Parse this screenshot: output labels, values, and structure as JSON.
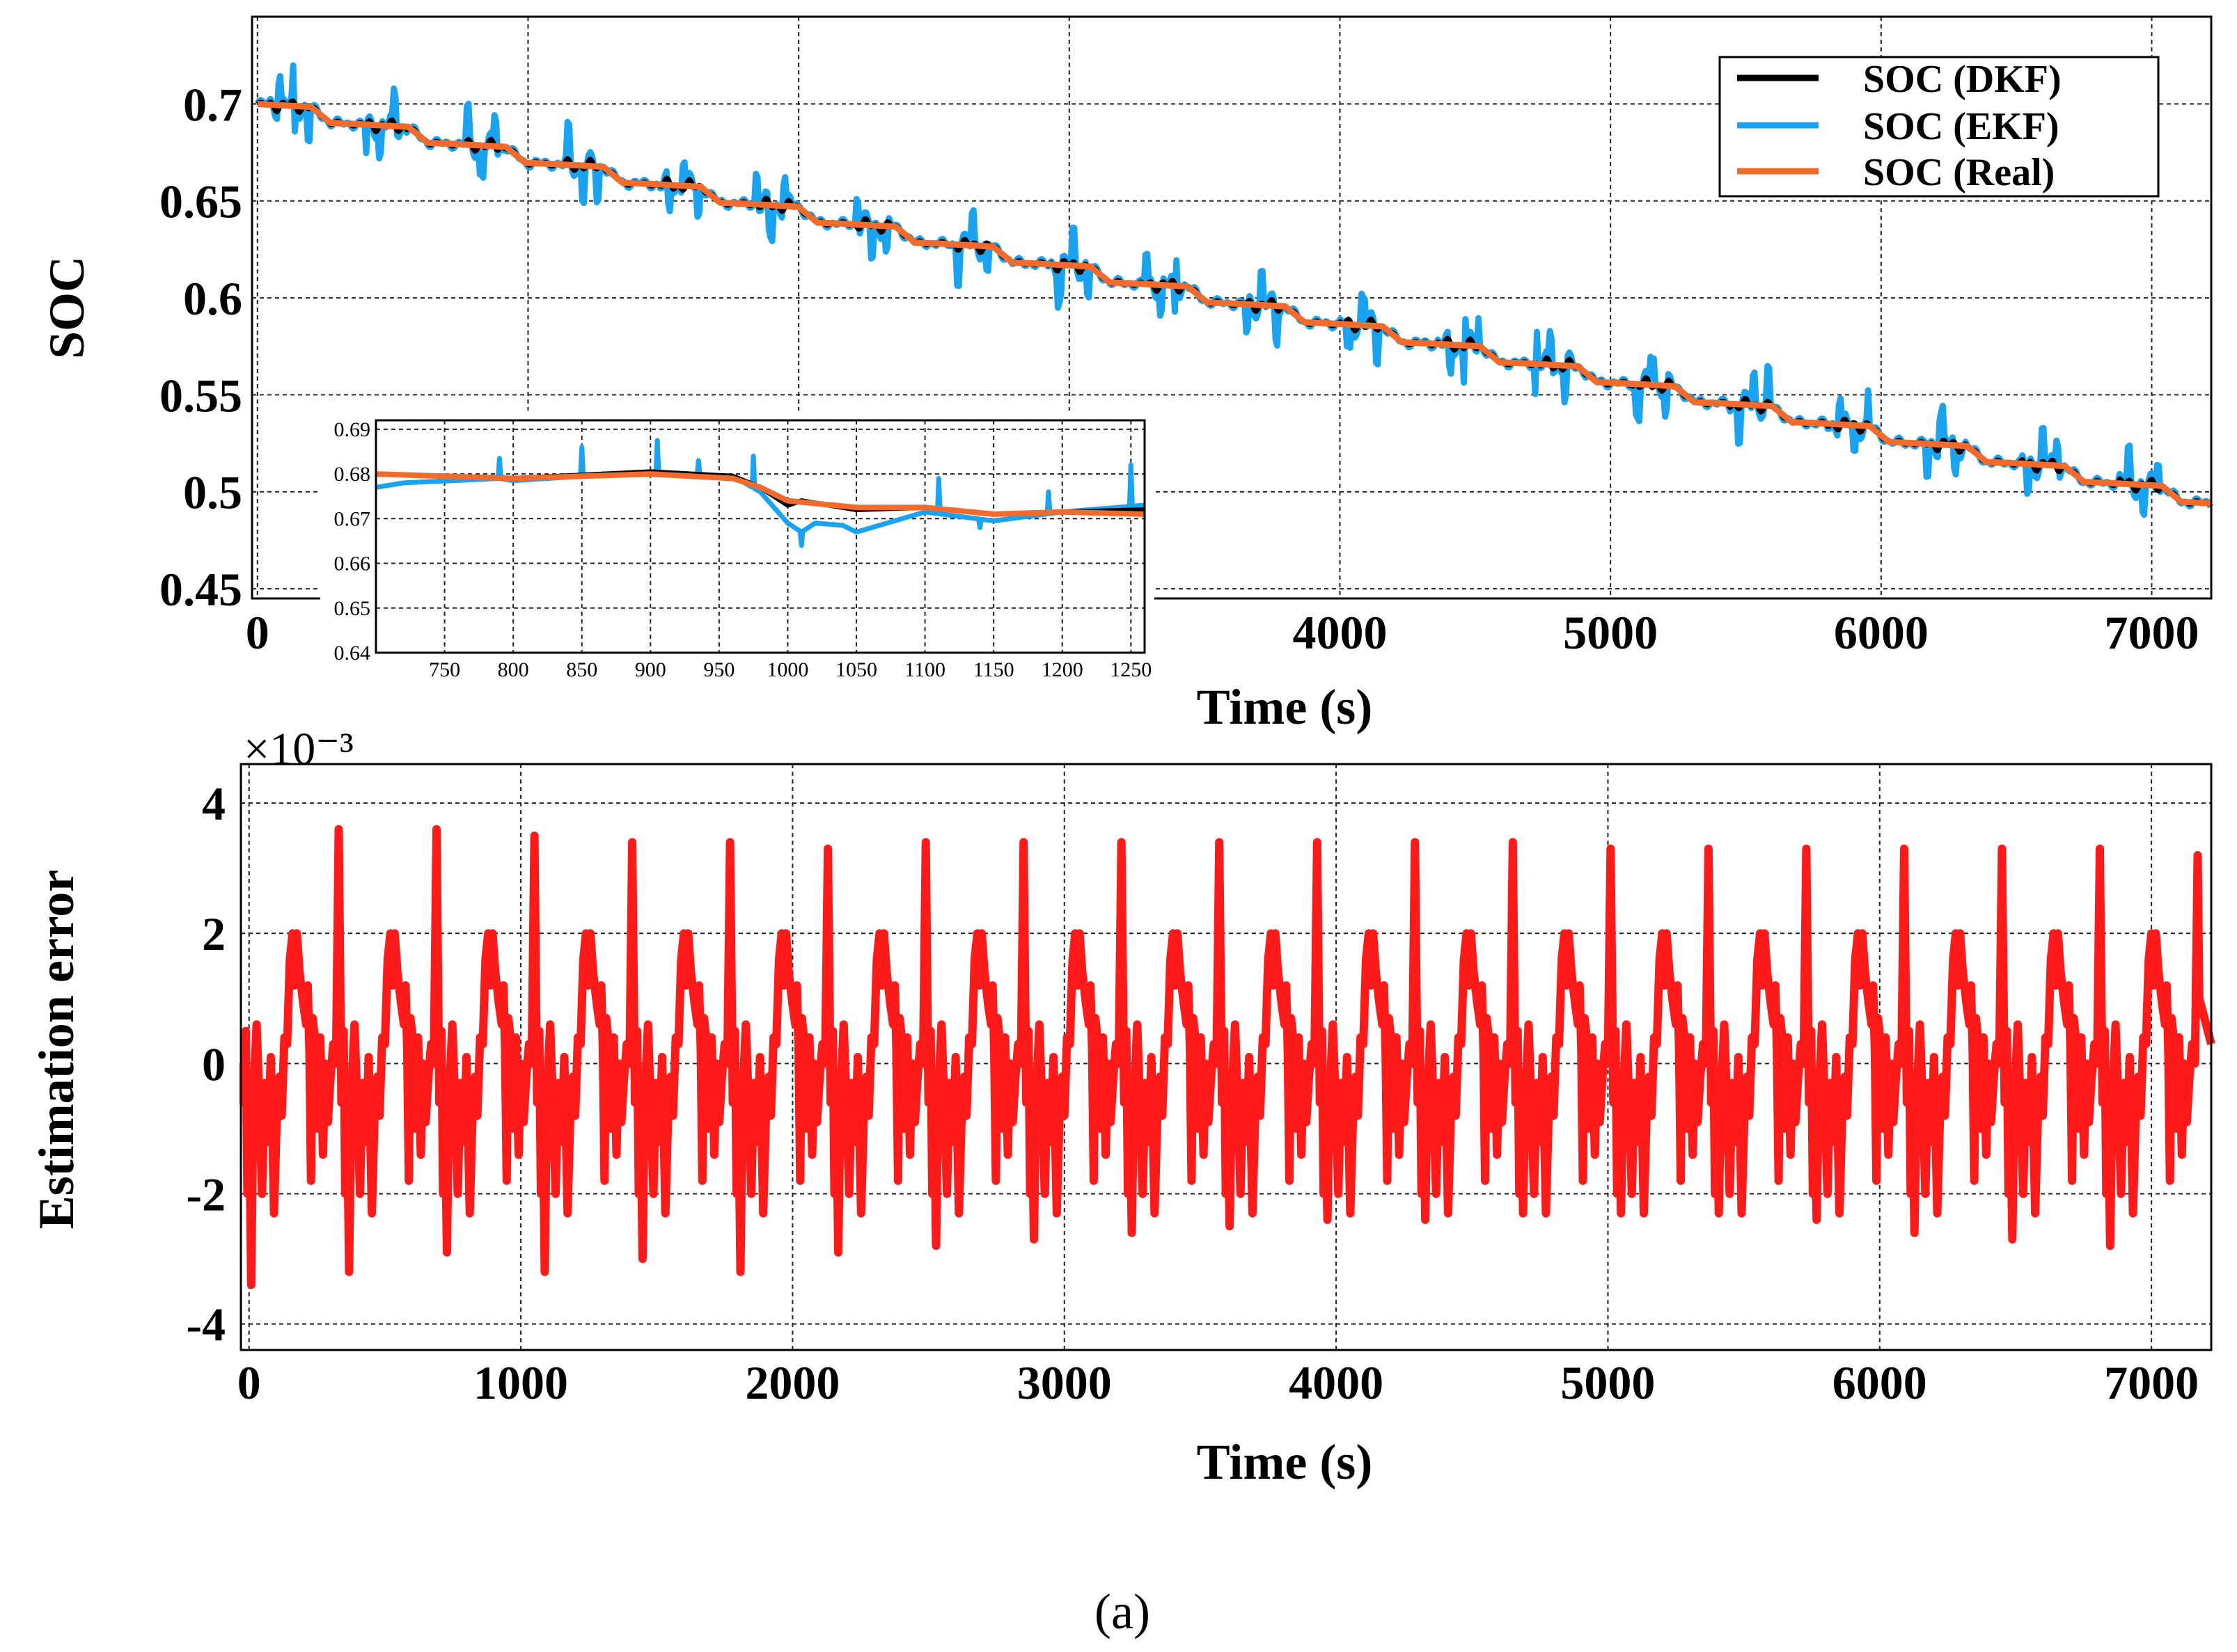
{
  "caption": "(a)",
  "chart_data": [
    {
      "type": "line",
      "title": "",
      "xlabel": "Time (s)",
      "ylabel": "SOC",
      "xlim": [
        -20,
        7220
      ],
      "ylim": [
        0.445,
        0.745
      ],
      "x_ticks": [
        0,
        1000,
        2000,
        3000,
        4000,
        5000,
        6000,
        7000
      ],
      "x_tick_labels": [
        "0",
        "1000",
        "2000",
        "3000",
        "4000",
        "5000",
        "6000",
        "7000"
      ],
      "y_ticks": [
        0.45,
        0.5,
        0.55,
        0.6,
        0.65,
        0.7
      ],
      "y_tick_labels": [
        "0.45",
        "0.5",
        "0.55",
        "0.6",
        "0.65",
        "0.7"
      ],
      "grid": true,
      "legend_position": "top-right",
      "series": [
        {
          "name": "SOC (DKF)",
          "color": "#000000"
        },
        {
          "name": "SOC (EKF)",
          "color": "#1aa3f0"
        },
        {
          "name": "SOC (Real)",
          "color": "#f26b2d"
        }
      ],
      "model": {
        "start": 0.7,
        "end": 0.484,
        "step_period_s": 360,
        "dkf_ripple": 0.006,
        "ekf_ripple": 0.012
      },
      "inset": {
        "xlim": [
          700,
          1260
        ],
        "ylim": [
          0.64,
          0.692
        ],
        "x_ticks": [
          750,
          800,
          850,
          900,
          950,
          1000,
          1050,
          1100,
          1150,
          1200,
          1250
        ],
        "x_tick_labels": [
          "750",
          "800",
          "850",
          "900",
          "950",
          "1000",
          "1050",
          "1100",
          "1150",
          "1200",
          "1250"
        ],
        "y_ticks": [
          0.64,
          0.65,
          0.66,
          0.67,
          0.68,
          0.69
        ],
        "y_tick_labels": [
          "0.64",
          "0.65",
          "0.66",
          "0.67",
          "0.68",
          "0.69"
        ],
        "real": [
          [
            700,
            0.68
          ],
          [
            800,
            0.679
          ],
          [
            900,
            0.68
          ],
          [
            960,
            0.679
          ],
          [
            980,
            0.677
          ],
          [
            1000,
            0.674
          ],
          [
            1050,
            0.6725
          ],
          [
            1100,
            0.6725
          ],
          [
            1150,
            0.671
          ],
          [
            1200,
            0.6715
          ],
          [
            1260,
            0.671
          ]
        ],
        "dkf": [
          [
            700,
            0.68
          ],
          [
            800,
            0.679
          ],
          [
            900,
            0.6805
          ],
          [
            960,
            0.6795
          ],
          [
            980,
            0.677
          ],
          [
            1000,
            0.673
          ],
          [
            1010,
            0.674
          ],
          [
            1050,
            0.672
          ],
          [
            1100,
            0.6725
          ],
          [
            1150,
            0.671
          ],
          [
            1200,
            0.6715
          ],
          [
            1260,
            0.672
          ]
        ],
        "ekf": [
          [
            700,
            0.677
          ],
          [
            720,
            0.678
          ],
          [
            790,
            0.679
          ],
          [
            800,
            0.6785
          ],
          [
            850,
            0.6795
          ],
          [
            900,
            0.68
          ],
          [
            920,
            0.68
          ],
          [
            960,
            0.6795
          ],
          [
            980,
            0.676
          ],
          [
            1000,
            0.669
          ],
          [
            1010,
            0.667
          ],
          [
            1020,
            0.669
          ],
          [
            1040,
            0.6685
          ],
          [
            1050,
            0.667
          ],
          [
            1100,
            0.6715
          ],
          [
            1150,
            0.6695
          ],
          [
            1200,
            0.6715
          ],
          [
            1260,
            0.673
          ]
        ],
        "ekf_spikes": [
          [
            790,
            0.6835
          ],
          [
            850,
            0.686
          ],
          [
            905,
            0.6875
          ],
          [
            935,
            0.683
          ],
          [
            975,
            0.684
          ],
          [
            1010,
            0.664
          ],
          [
            1110,
            0.679
          ],
          [
            1140,
            0.668
          ],
          [
            1190,
            0.676
          ],
          [
            1250,
            0.682
          ]
        ]
      }
    },
    {
      "type": "line",
      "title": "",
      "xlabel": "Time (s)",
      "ylabel": "Estimation error",
      "y_scale_label": "×10⁻³",
      "xlim": [
        -30,
        7220
      ],
      "ylim": [
        -4.4,
        4.6
      ],
      "x_ticks": [
        0,
        1000,
        2000,
        3000,
        4000,
        5000,
        6000,
        7000
      ],
      "x_tick_labels": [
        "0",
        "1000",
        "2000",
        "3000",
        "4000",
        "5000",
        "6000",
        "7000"
      ],
      "y_ticks": [
        -4,
        -2,
        0,
        2,
        4
      ],
      "y_tick_labels": [
        "-4",
        "-2",
        "0",
        "2",
        "4"
      ],
      "grid": true,
      "series": [
        {
          "name": "Estimation error",
          "color": "#ff1a1a"
        }
      ],
      "cycle_period_s": 360,
      "peaks": [
        3.6,
        3.6,
        3.5,
        3.4,
        3.4,
        3.3,
        3.4,
        3.4,
        3.4,
        3.4,
        3.4,
        3.4,
        3.4,
        3.3,
        3.3,
        3.3,
        3.3,
        3.3,
        3.3,
        3.2
      ],
      "troughs": [
        -3.4,
        -3.2,
        -2.9,
        -3.2,
        -3.0,
        -3.2,
        -2.9,
        -2.8,
        -2.7,
        -2.6,
        -2.5,
        -2.4,
        -2.4,
        -2.3,
        -2.3,
        -2.3,
        -2.4,
        -2.6,
        -2.7,
        -2.8
      ]
    }
  ]
}
